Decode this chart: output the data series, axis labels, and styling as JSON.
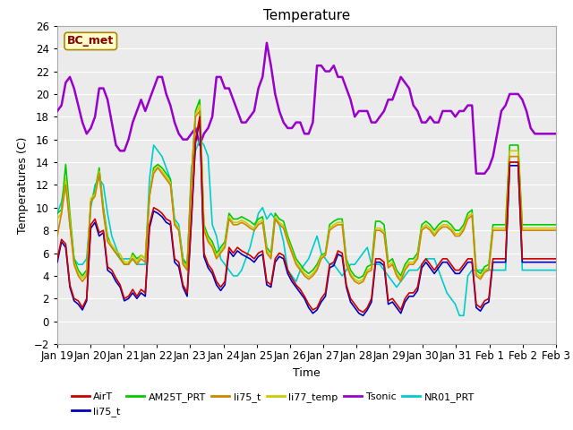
{
  "title": "Temperature",
  "xlabel": "Time",
  "ylabel": "Temperatures (C)",
  "ylim": [
    -2,
    26
  ],
  "xlim": [
    0,
    15
  ],
  "x_tick_labels": [
    "Jan 19",
    "Jan 20",
    "Jan 21",
    "Jan 22",
    "Jan 23",
    "Jan 24",
    "Jan 25",
    "Jan 26",
    "Jan 27",
    "Jan 28",
    "Jan 29",
    "Jan 30",
    "Jan 31",
    "Feb 1",
    "Feb 2",
    "Feb 3"
  ],
  "fig_facecolor": "#ffffff",
  "plot_bg_color": "#ebebeb",
  "annotation_label": "BC_met",
  "annotation_bg": "#ffffcc",
  "annotation_border": "#aa8800",
  "annotation_text_color": "#880000",
  "grid_color": "#ffffff",
  "series_order": [
    "Tsonic",
    "NR01_PRT",
    "AM25T_PRT",
    "li77_temp",
    "li75_t_orange",
    "li75_t_blue",
    "AirT"
  ],
  "legend_order": [
    "AirT",
    "li75_t_blue",
    "AM25T_PRT",
    "li75_t_orange",
    "li77_temp",
    "Tsonic",
    "NR01_PRT"
  ],
  "legend_labels": [
    "AirT",
    "li75_t",
    "AM25T_PRT",
    "li75_t",
    "li77_temp",
    "Tsonic",
    "NR01_PRT"
  ],
  "series": {
    "AirT": {
      "color": "#cc0000",
      "lw": 1.2,
      "values": [
        5.5,
        7.2,
        6.8,
        3.2,
        2.0,
        1.8,
        1.2,
        2.0,
        8.5,
        9.0,
        7.8,
        8.0,
        4.8,
        4.5,
        3.8,
        3.2,
        2.0,
        2.2,
        2.8,
        2.2,
        2.8,
        2.5,
        8.5,
        10.0,
        9.8,
        9.5,
        9.0,
        8.8,
        5.5,
        5.2,
        3.2,
        2.5,
        9.0,
        16.0,
        18.0,
        6.0,
        5.0,
        4.5,
        3.5,
        3.0,
        3.5,
        6.5,
        6.0,
        6.5,
        6.2,
        6.0,
        5.8,
        5.5,
        6.0,
        6.2,
        3.5,
        3.2,
        5.5,
        6.0,
        5.8,
        4.5,
        3.8,
        3.2,
        2.8,
        2.2,
        1.5,
        1.0,
        1.2,
        2.0,
        2.5,
        5.0,
        5.2,
        6.2,
        6.0,
        3.2,
        2.0,
        1.5,
        1.0,
        0.8,
        1.2,
        2.0,
        5.5,
        5.5,
        5.2,
        1.8,
        2.0,
        1.5,
        1.0,
        2.0,
        2.5,
        2.5,
        3.0,
        5.0,
        5.5,
        5.0,
        4.5,
        5.0,
        5.5,
        5.5,
        5.0,
        4.5,
        4.5,
        5.0,
        5.5,
        5.5,
        1.5,
        1.2,
        1.8,
        2.0,
        5.5,
        5.5,
        5.5,
        5.5,
        14.0,
        14.0,
        14.0,
        5.5,
        5.5,
        5.5,
        5.5,
        5.5,
        5.5,
        5.5,
        5.5,
        5.5
      ]
    },
    "li75_t_blue": {
      "color": "#0000bb",
      "lw": 1.2,
      "values": [
        5.2,
        7.0,
        6.5,
        3.0,
        1.8,
        1.5,
        1.0,
        1.8,
        8.2,
        8.7,
        7.5,
        7.8,
        4.5,
        4.2,
        3.5,
        3.0,
        1.8,
        2.0,
        2.5,
        2.0,
        2.5,
        2.2,
        8.2,
        9.7,
        9.5,
        9.2,
        8.7,
        8.5,
        5.2,
        4.8,
        3.0,
        2.2,
        8.7,
        15.7,
        17.7,
        5.7,
        4.7,
        4.2,
        3.2,
        2.7,
        3.2,
        6.2,
        5.7,
        6.2,
        5.9,
        5.7,
        5.5,
        5.2,
        5.7,
        5.9,
        3.2,
        3.0,
        5.2,
        5.7,
        5.5,
        4.2,
        3.5,
        3.0,
        2.5,
        2.0,
        1.2,
        0.7,
        1.0,
        1.7,
        2.2,
        4.7,
        4.9,
        5.9,
        5.7,
        3.0,
        1.7,
        1.2,
        0.7,
        0.5,
        1.0,
        1.7,
        5.2,
        5.2,
        4.9,
        1.5,
        1.7,
        1.2,
        0.7,
        1.7,
        2.2,
        2.2,
        2.7,
        4.7,
        5.2,
        4.7,
        4.2,
        4.7,
        5.2,
        5.2,
        4.7,
        4.2,
        4.2,
        4.7,
        5.2,
        5.2,
        1.2,
        0.9,
        1.5,
        1.7,
        5.2,
        5.2,
        5.2,
        5.2,
        13.7,
        13.7,
        13.7,
        5.2,
        5.2,
        5.2,
        5.2,
        5.2,
        5.2,
        5.2,
        5.2,
        5.2
      ]
    },
    "AM25T_PRT": {
      "color": "#00cc00",
      "lw": 1.2,
      "values": [
        9.5,
        9.8,
        13.8,
        9.5,
        5.5,
        4.5,
        4.0,
        4.5,
        10.5,
        11.5,
        13.5,
        10.0,
        7.5,
        6.5,
        6.0,
        5.5,
        5.0,
        5.0,
        6.0,
        5.5,
        5.8,
        5.5,
        11.0,
        13.5,
        13.8,
        13.5,
        13.0,
        12.5,
        8.5,
        8.0,
        5.5,
        5.0,
        12.5,
        18.5,
        19.5,
        8.5,
        7.5,
        7.0,
        6.0,
        6.5,
        7.0,
        9.5,
        9.0,
        9.0,
        9.2,
        9.0,
        8.8,
        8.5,
        9.0,
        9.2,
        6.5,
        6.0,
        9.5,
        9.0,
        8.8,
        7.5,
        6.5,
        5.5,
        5.0,
        4.5,
        4.2,
        4.5,
        5.0,
        5.8,
        6.0,
        8.5,
        8.8,
        9.0,
        9.0,
        5.5,
        4.5,
        4.0,
        3.8,
        4.0,
        4.8,
        5.0,
        8.8,
        8.8,
        8.5,
        5.2,
        5.5,
        4.5,
        4.0,
        5.0,
        5.5,
        5.5,
        6.0,
        8.5,
        8.8,
        8.5,
        8.0,
        8.5,
        8.8,
        8.8,
        8.5,
        8.0,
        8.0,
        8.5,
        9.5,
        9.8,
        4.5,
        4.2,
        4.8,
        5.0,
        8.5,
        8.5,
        8.5,
        8.5,
        15.5,
        15.5,
        15.5,
        8.5,
        8.5,
        8.5,
        8.5,
        8.5,
        8.5,
        8.5,
        8.5,
        8.5
      ]
    },
    "li75_t_orange": {
      "color": "#cc8800",
      "lw": 1.2,
      "values": [
        7.5,
        9.5,
        12.0,
        8.5,
        5.0,
        4.0,
        3.5,
        4.0,
        10.5,
        11.0,
        13.0,
        9.5,
        7.0,
        6.5,
        6.0,
        5.5,
        5.0,
        5.0,
        5.5,
        5.0,
        5.5,
        5.2,
        11.0,
        13.0,
        13.5,
        13.0,
        12.5,
        12.0,
        8.5,
        8.0,
        5.0,
        4.5,
        12.5,
        18.0,
        18.5,
        8.0,
        7.0,
        6.5,
        5.5,
        6.0,
        6.5,
        9.0,
        8.5,
        8.5,
        8.7,
        8.5,
        8.2,
        8.0,
        8.5,
        8.7,
        6.0,
        5.5,
        9.0,
        8.5,
        8.2,
        7.0,
        6.0,
        5.0,
        4.5,
        4.0,
        3.7,
        4.0,
        4.5,
        5.5,
        5.8,
        8.0,
        8.3,
        8.5,
        8.5,
        5.0,
        4.0,
        3.5,
        3.3,
        3.5,
        4.3,
        4.5,
        8.0,
        8.0,
        7.7,
        4.7,
        5.0,
        4.0,
        3.5,
        4.5,
        5.0,
        5.0,
        5.5,
        8.0,
        8.3,
        8.0,
        7.5,
        8.0,
        8.3,
        8.3,
        8.0,
        7.5,
        7.5,
        8.0,
        9.0,
        9.3,
        4.0,
        3.7,
        4.3,
        4.5,
        8.0,
        8.0,
        8.0,
        8.0,
        14.5,
        14.5,
        14.5,
        8.0,
        8.0,
        8.0,
        8.0,
        8.0,
        8.0,
        8.0,
        8.0,
        8.0
      ]
    },
    "li77_temp": {
      "color": "#cccc00",
      "lw": 1.2,
      "values": [
        9.0,
        9.5,
        12.5,
        9.0,
        5.2,
        4.2,
        3.8,
        4.2,
        10.8,
        11.2,
        13.2,
        9.7,
        7.2,
        6.7,
        6.2,
        5.9,
        5.2,
        5.2,
        5.8,
        5.2,
        5.8,
        5.5,
        11.2,
        13.2,
        13.6,
        13.2,
        12.7,
        12.2,
        8.7,
        8.2,
        5.2,
        4.7,
        12.7,
        18.2,
        19.0,
        8.2,
        7.2,
        6.7,
        5.7,
        6.2,
        6.7,
        9.2,
        8.7,
        8.7,
        8.9,
        8.7,
        8.4,
        8.2,
        8.7,
        8.9,
        6.2,
        5.7,
        9.2,
        8.7,
        8.4,
        7.2,
        6.2,
        5.2,
        4.7,
        4.2,
        3.9,
        4.2,
        4.7,
        5.7,
        5.9,
        8.2,
        8.5,
        8.7,
        8.7,
        5.2,
        4.2,
        3.7,
        3.5,
        3.7,
        4.5,
        4.7,
        8.2,
        8.2,
        7.9,
        4.9,
        5.2,
        4.2,
        3.7,
        4.7,
        5.2,
        5.2,
        5.7,
        8.2,
        8.5,
        8.2,
        7.7,
        8.2,
        8.5,
        8.5,
        8.2,
        7.7,
        7.7,
        8.2,
        9.2,
        9.5,
        4.2,
        3.9,
        4.5,
        4.7,
        8.2,
        8.2,
        8.2,
        8.2,
        15.0,
        15.0,
        15.0,
        8.2,
        8.2,
        8.2,
        8.2,
        8.2,
        8.2,
        8.2,
        8.2,
        8.2
      ]
    },
    "Tsonic": {
      "color": "#9900cc",
      "lw": 1.8,
      "values": [
        18.5,
        19.0,
        21.0,
        21.5,
        20.5,
        19.0,
        17.5,
        16.5,
        17.0,
        18.0,
        20.5,
        20.5,
        19.5,
        17.5,
        15.5,
        15.0,
        15.0,
        16.0,
        17.5,
        18.5,
        19.5,
        18.5,
        19.5,
        20.5,
        21.5,
        21.5,
        20.0,
        19.0,
        17.5,
        16.5,
        16.0,
        16.0,
        16.5,
        17.0,
        15.5,
        16.5,
        17.0,
        18.0,
        21.5,
        21.5,
        20.5,
        20.5,
        19.5,
        18.5,
        17.5,
        17.5,
        18.0,
        18.5,
        20.5,
        21.5,
        24.5,
        22.5,
        20.0,
        18.5,
        17.5,
        17.0,
        17.0,
        17.5,
        17.5,
        16.5,
        16.5,
        17.5,
        22.5,
        22.5,
        22.0,
        22.0,
        22.5,
        21.5,
        21.5,
        20.5,
        19.5,
        18.0,
        18.5,
        18.5,
        18.5,
        17.5,
        17.5,
        18.0,
        18.5,
        19.5,
        19.5,
        20.5,
        21.5,
        21.0,
        20.5,
        19.0,
        18.5,
        17.5,
        17.5,
        18.0,
        17.5,
        17.5,
        18.5,
        18.5,
        18.5,
        18.0,
        18.5,
        18.5,
        19.0,
        19.0,
        13.0,
        13.0,
        13.0,
        13.5,
        14.5,
        16.5,
        18.5,
        19.0,
        20.0,
        20.0,
        20.0,
        19.5,
        18.5,
        17.0,
        16.5,
        16.5,
        16.5,
        16.5,
        16.5,
        16.5
      ]
    },
    "NR01_PRT": {
      "color": "#00cccc",
      "lw": 1.2,
      "values": [
        9.5,
        10.5,
        12.5,
        8.5,
        5.5,
        5.0,
        5.0,
        5.5,
        10.0,
        12.0,
        12.5,
        12.0,
        9.5,
        7.5,
        6.5,
        5.5,
        5.5,
        5.5,
        5.5,
        5.0,
        5.0,
        5.0,
        12.5,
        15.5,
        15.0,
        14.5,
        13.5,
        12.5,
        9.0,
        8.5,
        5.5,
        4.5,
        13.5,
        15.0,
        16.0,
        15.5,
        14.5,
        8.5,
        7.5,
        5.5,
        5.0,
        4.5,
        4.0,
        4.0,
        4.5,
        5.5,
        6.5,
        8.0,
        9.5,
        10.0,
        9.0,
        9.5,
        9.0,
        8.5,
        7.0,
        4.5,
        4.0,
        3.5,
        4.5,
        5.0,
        5.5,
        6.5,
        7.5,
        6.0,
        5.5,
        5.0,
        5.0,
        4.5,
        4.0,
        4.5,
        5.0,
        5.0,
        5.5,
        6.0,
        6.5,
        5.0,
        5.0,
        5.0,
        4.5,
        4.0,
        3.5,
        3.0,
        3.5,
        4.0,
        4.5,
        4.5,
        4.5,
        5.0,
        5.5,
        5.5,
        5.5,
        4.5,
        3.5,
        2.5,
        2.0,
        1.5,
        0.5,
        0.5,
        4.0,
        4.5,
        4.5,
        4.5,
        4.5,
        4.5,
        4.5,
        4.5,
        4.5,
        4.5,
        14.0,
        14.0,
        14.0,
        4.5,
        4.5,
        4.5,
        4.5,
        4.5,
        4.5,
        4.5,
        4.5,
        4.5
      ]
    }
  }
}
